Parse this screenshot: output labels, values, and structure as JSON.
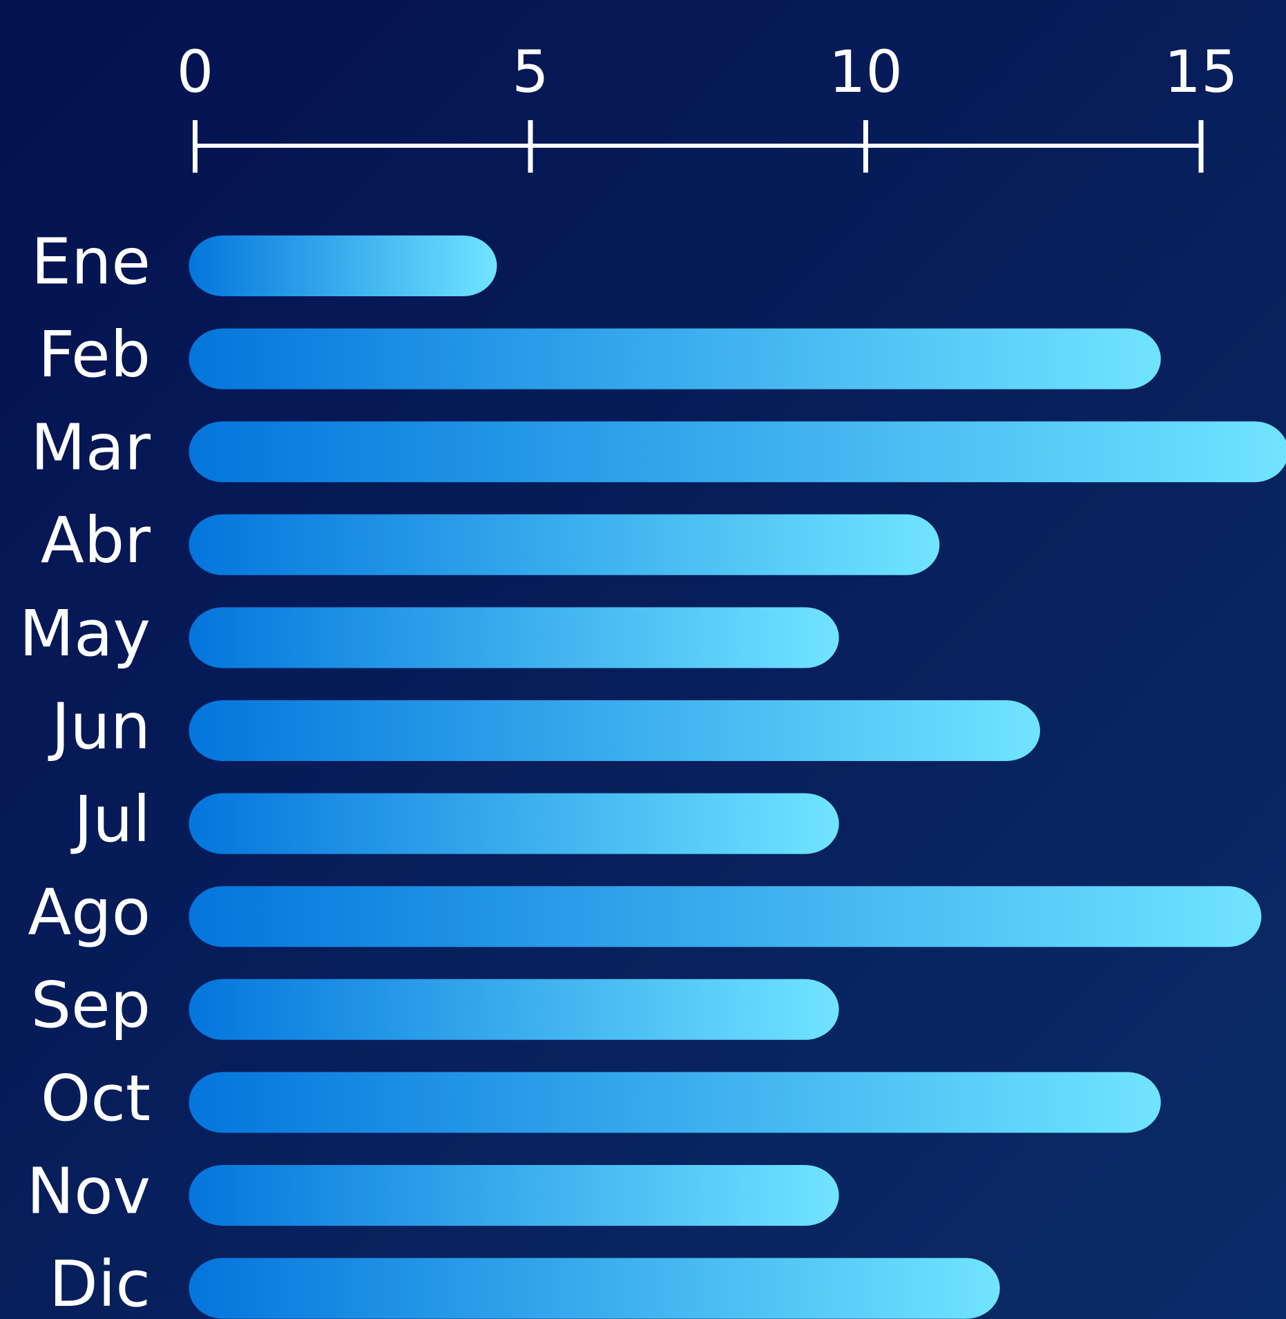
{
  "chart_data": {
    "type": "barh",
    "categories": [
      "Ene",
      "Feb",
      "Mar",
      "Abr",
      "May",
      "Jun",
      "Jul",
      "Ago",
      "Sep",
      "Oct",
      "Nov",
      "Dic"
    ],
    "values": [
      4.5,
      14.4,
      16.3,
      11.1,
      9.6,
      12.6,
      9.6,
      15.9,
      9.6,
      14.4,
      9.6,
      12
    ],
    "xlim": [
      0,
      15
    ],
    "xticks": [
      0,
      5,
      10,
      15
    ],
    "gradient": [
      "#0475dc",
      "#70e4ff"
    ]
  }
}
